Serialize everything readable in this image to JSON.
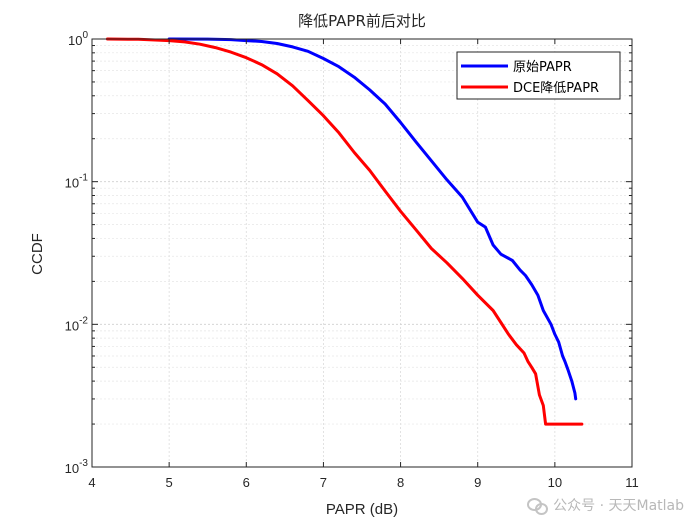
{
  "chart_data": {
    "type": "line",
    "title": "降低PAPR前后对比",
    "xlabel": "PAPR (dB)",
    "ylabel": "CCDF",
    "xlim": [
      4,
      11
    ],
    "ylim": [
      0.001,
      1
    ],
    "yscale": "log",
    "grid": true,
    "legend_position": "top-right",
    "x_ticks": [
      "4",
      "5",
      "6",
      "7",
      "8",
      "9",
      "10",
      "11"
    ],
    "y_ticks": [
      {
        "base": "10",
        "exp": "0",
        "value": 1
      },
      {
        "base": "10",
        "exp": "-1",
        "value": 0.1
      },
      {
        "base": "10",
        "exp": "-2",
        "value": 0.01
      },
      {
        "base": "10",
        "exp": "-3",
        "value": 0.001
      }
    ],
    "series": [
      {
        "name": "原始PAPR",
        "color": "#0000ff",
        "points": [
          [
            5.0,
            1.0
          ],
          [
            5.5,
            0.998
          ],
          [
            5.8,
            0.99
          ],
          [
            6.0,
            0.975
          ],
          [
            6.2,
            0.96
          ],
          [
            6.4,
            0.93
          ],
          [
            6.6,
            0.88
          ],
          [
            6.8,
            0.82
          ],
          [
            7.0,
            0.73
          ],
          [
            7.2,
            0.64
          ],
          [
            7.4,
            0.54
          ],
          [
            7.6,
            0.44
          ],
          [
            7.8,
            0.35
          ],
          [
            8.0,
            0.26
          ],
          [
            8.2,
            0.19
          ],
          [
            8.4,
            0.14
          ],
          [
            8.6,
            0.103
          ],
          [
            8.8,
            0.078
          ],
          [
            9.0,
            0.052
          ],
          [
            9.1,
            0.048
          ],
          [
            9.2,
            0.036
          ],
          [
            9.3,
            0.031
          ],
          [
            9.45,
            0.028
          ],
          [
            9.55,
            0.024
          ],
          [
            9.62,
            0.022
          ],
          [
            9.7,
            0.019
          ],
          [
            9.78,
            0.016
          ],
          [
            9.85,
            0.0125
          ],
          [
            9.95,
            0.01
          ],
          [
            10.0,
            0.0085
          ],
          [
            10.05,
            0.0075
          ],
          [
            10.1,
            0.006
          ],
          [
            10.13,
            0.0055
          ],
          [
            10.17,
            0.0048
          ],
          [
            10.22,
            0.004
          ],
          [
            10.26,
            0.0033
          ],
          [
            10.27,
            0.003
          ]
        ]
      },
      {
        "name": "DCE降低PAPR",
        "color": "#ff0000",
        "points": [
          [
            4.2,
            1.0
          ],
          [
            4.6,
            0.995
          ],
          [
            5.0,
            0.975
          ],
          [
            5.2,
            0.955
          ],
          [
            5.4,
            0.92
          ],
          [
            5.6,
            0.87
          ],
          [
            5.8,
            0.81
          ],
          [
            6.0,
            0.74
          ],
          [
            6.2,
            0.66
          ],
          [
            6.4,
            0.57
          ],
          [
            6.6,
            0.47
          ],
          [
            6.8,
            0.37
          ],
          [
            7.0,
            0.29
          ],
          [
            7.2,
            0.22
          ],
          [
            7.4,
            0.16
          ],
          [
            7.6,
            0.12
          ],
          [
            7.8,
            0.086
          ],
          [
            8.0,
            0.062
          ],
          [
            8.2,
            0.046
          ],
          [
            8.4,
            0.034
          ],
          [
            8.6,
            0.027
          ],
          [
            8.8,
            0.021
          ],
          [
            9.0,
            0.016
          ],
          [
            9.2,
            0.0125
          ],
          [
            9.3,
            0.0103
          ],
          [
            9.4,
            0.0085
          ],
          [
            9.5,
            0.0072
          ],
          [
            9.6,
            0.0063
          ],
          [
            9.65,
            0.0055
          ],
          [
            9.7,
            0.005
          ],
          [
            9.75,
            0.0045
          ],
          [
            9.8,
            0.0032
          ],
          [
            9.85,
            0.0027
          ],
          [
            9.88,
            0.002
          ],
          [
            10.0,
            0.002
          ],
          [
            10.35,
            0.002
          ]
        ]
      }
    ]
  },
  "watermark": {
    "icon": "wechat-icon",
    "text": "公众号 · 天天Matlab"
  }
}
